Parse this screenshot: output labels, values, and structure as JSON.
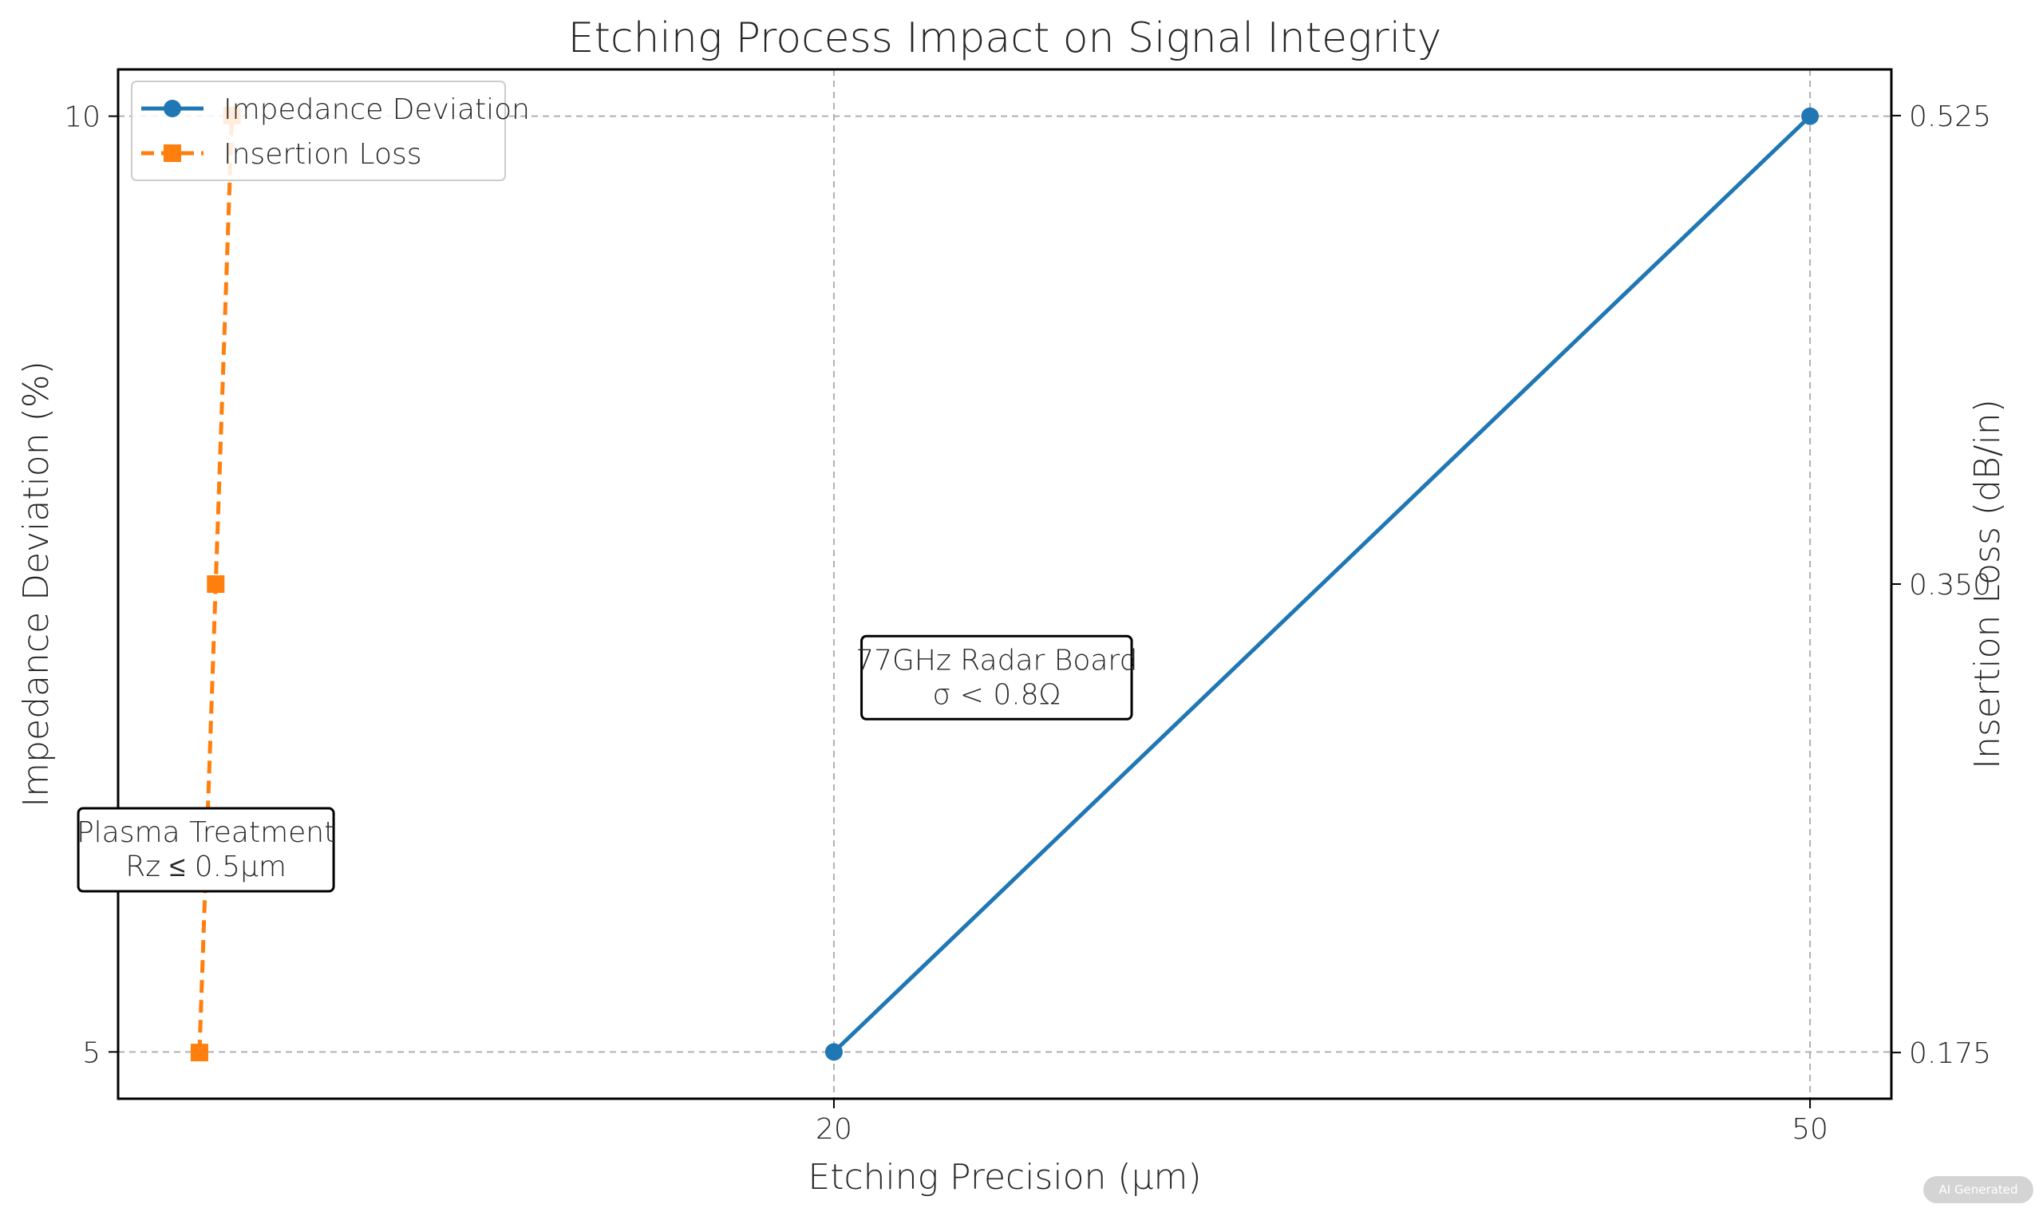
{
  "chart_data": {
    "type": "line",
    "title": "Etching Process Impact on Signal Integrity",
    "xlabel": "Etching Precision (μm)",
    "ylabel": "Impedance Deviation (%)",
    "y2label": "Insertion Loss (dB/in)",
    "x_ticks": [
      20,
      50
    ],
    "y_ticks": [
      5,
      10
    ],
    "y2_ticks": [
      "0.175",
      "0.350",
      "0.525"
    ],
    "xlim": [
      -2,
      52.5
    ],
    "ylim": [
      4.75,
      10.25
    ],
    "y2lim": [
      0.15775,
      0.54225
    ],
    "grid": true,
    "legend_position": "top-left",
    "series": [
      {
        "name": "Impedance Deviation",
        "axis": "left",
        "color": "#1f77b4",
        "marker": "circle",
        "line_style": "solid",
        "x": [
          20,
          50
        ],
        "y": [
          5,
          10
        ]
      },
      {
        "name": "Insertion Loss",
        "axis": "right",
        "color": "#ff7f0e",
        "marker": "square",
        "line_style": "dashed",
        "x": [
          0.5,
          1,
          1.5
        ],
        "y": [
          0.175,
          0.35,
          0.525
        ]
      }
    ],
    "annotations": [
      {
        "lines": [
          "77GHz Radar Board",
          "σ < 0.8Ω"
        ],
        "x": 25,
        "y": 7
      },
      {
        "lines": [
          "Plasma Treatment",
          "Rz ≤ 0.5μm"
        ],
        "x": 0.7,
        "y": 6.08
      }
    ]
  },
  "badge": {
    "label": "AI Generated"
  }
}
